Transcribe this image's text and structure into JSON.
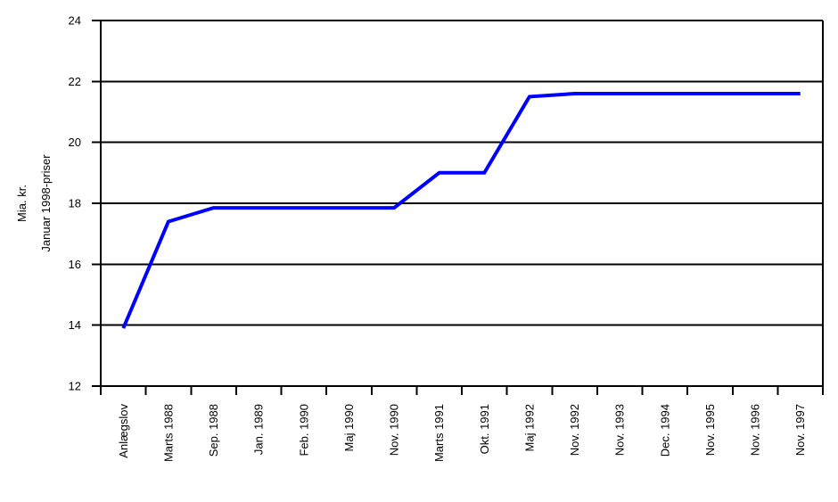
{
  "chart_data": {
    "type": "line",
    "title": "",
    "ylabel": "Mia. kr. Januar 1998-priser",
    "ylabel_lines": [
      "Mia. kr.",
      "Januar 1998-priser"
    ],
    "xlabel": "",
    "categories": [
      "Anlægslov",
      "Marts 1988",
      "Sep. 1988",
      "Jan. 1989",
      "Feb. 1990",
      "Maj 1990",
      "Nov. 1990",
      "Marts 1991",
      "Okt. 1991",
      "Maj 1992",
      "Nov. 1992",
      "Nov. 1993",
      "Dec. 1994",
      "Nov. 1995",
      "Nov. 1996",
      "Nov. 1997"
    ],
    "values": [
      13.9,
      17.4,
      17.85,
      17.85,
      17.85,
      17.85,
      17.85,
      19.0,
      19.0,
      21.5,
      21.6,
      21.6,
      21.6,
      21.6,
      21.6,
      21.6
    ],
    "ylim": [
      12,
      24
    ],
    "yticks": [
      12,
      14,
      16,
      18,
      20,
      22,
      24
    ],
    "ytick_step": 2,
    "grid": "horizontal",
    "legend": "none",
    "x_labels_rotated_degrees": 90,
    "line_color": "#0000ff",
    "axis_color": "#000000",
    "background_color": "#ffffff"
  }
}
